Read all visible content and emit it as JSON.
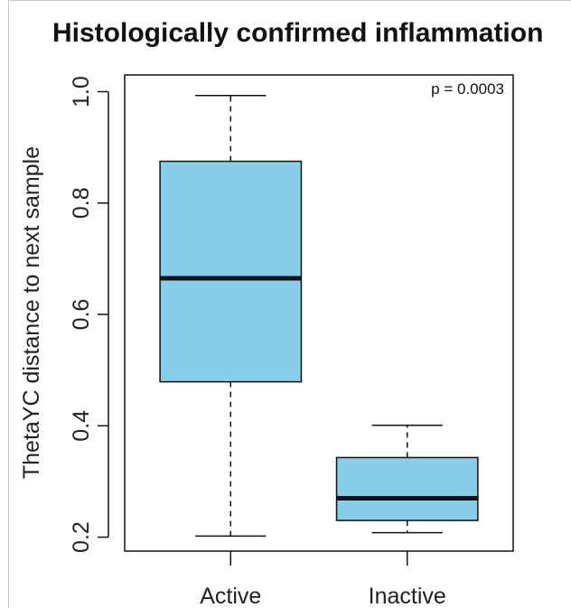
{
  "chart_data": {
    "type": "boxplot",
    "title": "Histologically confirmed inflammation",
    "xlabel": "",
    "ylabel": "ThetaYC distance to next sample",
    "ylim": [
      0.175,
      1.03
    ],
    "yticks": [
      "0.2",
      "0.4",
      "0.6",
      "0.8",
      "1.0"
    ],
    "annotation": "p = 0.0003",
    "legend": "none",
    "grid": false,
    "box_color": "#87ceeb",
    "categories": [
      "Active",
      "Inactive"
    ],
    "boxes": [
      {
        "name": "Active",
        "min": 0.202,
        "q1": 0.479,
        "median": 0.665,
        "q3": 0.875,
        "max": 0.993
      },
      {
        "name": "Inactive",
        "min": 0.208,
        "q1": 0.23,
        "median": 0.27,
        "q3": 0.343,
        "max": 0.401
      }
    ]
  }
}
